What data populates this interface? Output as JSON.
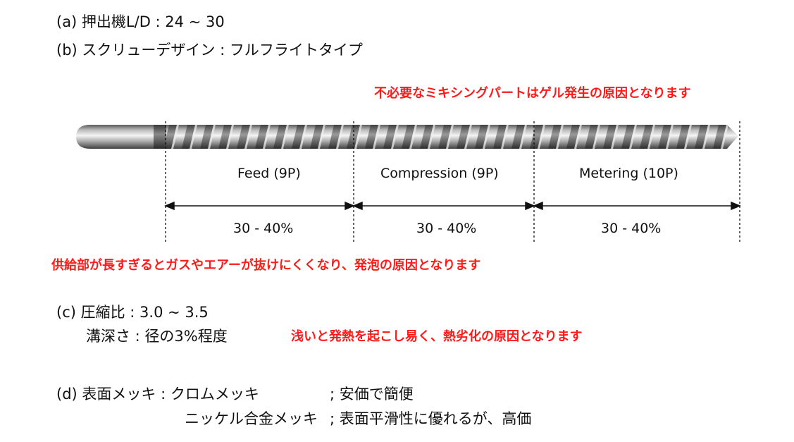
{
  "specs": {
    "a": "(a) 押出機L/D : 24 ~ 30",
    "b": "(b) スクリューデザイン : フルフライトタイプ",
    "c_line1": "(c) 圧縮比 : 3.0 ~ 3.5",
    "c_line2": "溝深さ : 径の3%程度",
    "d_line1": "(d) 表面メッキ : クロムメッキ",
    "d_line1_note": "; 安価で簡便",
    "d_line2": "ニッケル合金メッキ",
    "d_line2_note": "; 表面平滑性に優れるが、高価"
  },
  "notes": {
    "mixing": "不必要なミキシングパートはゲル発生の原因となります",
    "feed": "供給部が長すぎるとガスやエアーが抜けにくくなり、発泡の原因となります",
    "depth": "浅いと発熱を起こし易く、熱劣化の原因となります"
  },
  "sections": [
    {
      "name": "Feed (9P)",
      "ratio": "30 - 40%"
    },
    {
      "name": "Compression (9P)",
      "ratio": "30 - 40%"
    },
    {
      "name": "Metering (10P)",
      "ratio": "30 - 40%"
    }
  ],
  "colors": {
    "note": "#ff1a1a",
    "text": "#111111"
  }
}
